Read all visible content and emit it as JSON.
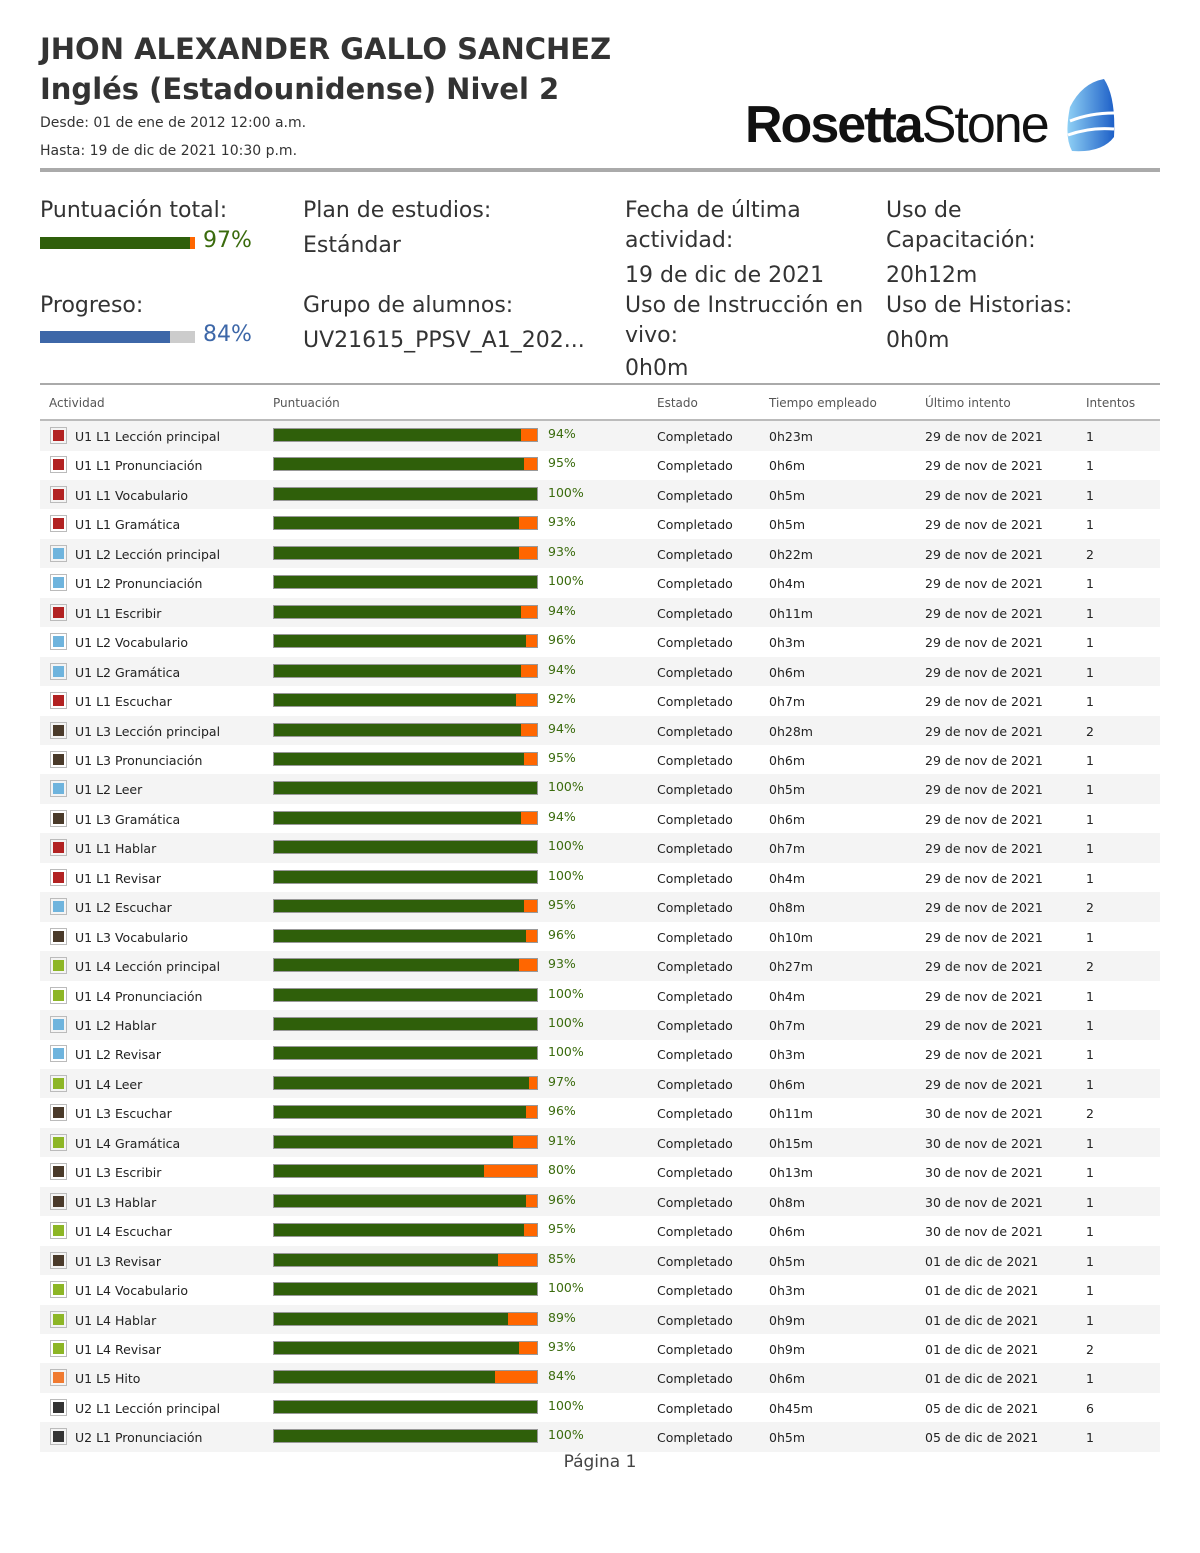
{
  "header": {
    "student_name": "JHON ALEXANDER GALLO SANCHEZ",
    "course": "Inglés (Estadounidense) Nivel 2",
    "from": "Desde: 01 de ene de 2012 12:00 a.m.",
    "to": "Hasta: 19 de dic de 2021 10:30 p.m.",
    "logo": "Rosetta Stone"
  },
  "summary": {
    "total_score_label": "Puntuación total:",
    "total_score": 97,
    "total_score_text": "97%",
    "progress_label": "Progreso:",
    "progress": 84,
    "progress_text": "84%",
    "plan_label": "Plan de estudios:",
    "plan_value": "Estándar",
    "group_label": "Grupo de alumnos:",
    "group_value": "UV21615_PPSV_A1_202...",
    "last_activity_label": "Fecha de última actividad:",
    "last_activity_value": "19 de dic de 2021",
    "live_label": "Uso de Instrucción en vivo:",
    "live_value": "0h0m",
    "training_label": "Uso de Capacitación:",
    "training_value": "20h12m",
    "stories_label": "Uso de Historias:",
    "stories_value": "0h0m"
  },
  "colors": {
    "score_fill": "#2f5f0a",
    "score_missing": "#ff6600",
    "progress_fill": "#3d67a8",
    "pct_green": "#3a6b0d",
    "pct_blue": "#3d67a8"
  },
  "table": {
    "columns": [
      "Actividad",
      "Puntuación",
      "Estado",
      "Tiempo empleado",
      "Último intento",
      "Intentos"
    ],
    "rows": [
      [
        "U1 L1 Lección principal",
        94,
        "Completado",
        "0h23m",
        "29 de nov de 2021",
        "1",
        "#b22222"
      ],
      [
        "U1 L1 Pronunciación",
        95,
        "Completado",
        "0h6m",
        "29 de nov de 2021",
        "1",
        "#b22222"
      ],
      [
        "U1 L1 Vocabulario",
        100,
        "Completado",
        "0h5m",
        "29 de nov de 2021",
        "1",
        "#b22222"
      ],
      [
        "U1 L1 Gramática",
        93,
        "Completado",
        "0h5m",
        "29 de nov de 2021",
        "1",
        "#b22222"
      ],
      [
        "U1 L2 Lección principal",
        93,
        "Completado",
        "0h22m",
        "29 de nov de 2021",
        "2",
        "#6fb4dd"
      ],
      [
        "U1 L2 Pronunciación",
        100,
        "Completado",
        "0h4m",
        "29 de nov de 2021",
        "1",
        "#6fb4dd"
      ],
      [
        "U1 L1 Escribir",
        94,
        "Completado",
        "0h11m",
        "29 de nov de 2021",
        "1",
        "#b22222"
      ],
      [
        "U1 L2 Vocabulario",
        96,
        "Completado",
        "0h3m",
        "29 de nov de 2021",
        "1",
        "#6fb4dd"
      ],
      [
        "U1 L2 Gramática",
        94,
        "Completado",
        "0h6m",
        "29 de nov de 2021",
        "1",
        "#6fb4dd"
      ],
      [
        "U1 L1 Escuchar",
        92,
        "Completado",
        "0h7m",
        "29 de nov de 2021",
        "1",
        "#b22222"
      ],
      [
        "U1 L3 Lección principal",
        94,
        "Completado",
        "0h28m",
        "29 de nov de 2021",
        "2",
        "#4a3a2a"
      ],
      [
        "U1 L3 Pronunciación",
        95,
        "Completado",
        "0h6m",
        "29 de nov de 2021",
        "1",
        "#4a3a2a"
      ],
      [
        "U1 L2 Leer",
        100,
        "Completado",
        "0h5m",
        "29 de nov de 2021",
        "1",
        "#6fb4dd"
      ],
      [
        "U1 L3 Gramática",
        94,
        "Completado",
        "0h6m",
        "29 de nov de 2021",
        "1",
        "#4a3a2a"
      ],
      [
        "U1 L1 Hablar",
        100,
        "Completado",
        "0h7m",
        "29 de nov de 2021",
        "1",
        "#b22222"
      ],
      [
        "U1 L1 Revisar",
        100,
        "Completado",
        "0h4m",
        "29 de nov de 2021",
        "1",
        "#b22222"
      ],
      [
        "U1 L2 Escuchar",
        95,
        "Completado",
        "0h8m",
        "29 de nov de 2021",
        "2",
        "#6fb4dd"
      ],
      [
        "U1 L3 Vocabulario",
        96,
        "Completado",
        "0h10m",
        "29 de nov de 2021",
        "1",
        "#4a3a2a"
      ],
      [
        "U1 L4 Lección principal",
        93,
        "Completado",
        "0h27m",
        "29 de nov de 2021",
        "2",
        "#8db626"
      ],
      [
        "U1 L4 Pronunciación",
        100,
        "Completado",
        "0h4m",
        "29 de nov de 2021",
        "1",
        "#8db626"
      ],
      [
        "U1 L2 Hablar",
        100,
        "Completado",
        "0h7m",
        "29 de nov de 2021",
        "1",
        "#6fb4dd"
      ],
      [
        "U1 L2 Revisar",
        100,
        "Completado",
        "0h3m",
        "29 de nov de 2021",
        "1",
        "#6fb4dd"
      ],
      [
        "U1 L4 Leer",
        97,
        "Completado",
        "0h6m",
        "29 de nov de 2021",
        "1",
        "#8db626"
      ],
      [
        "U1 L3 Escuchar",
        96,
        "Completado",
        "0h11m",
        "30 de nov de 2021",
        "2",
        "#4a3a2a"
      ],
      [
        "U1 L4 Gramática",
        91,
        "Completado",
        "0h15m",
        "30 de nov de 2021",
        "1",
        "#8db626"
      ],
      [
        "U1 L3 Escribir",
        80,
        "Completado",
        "0h13m",
        "30 de nov de 2021",
        "1",
        "#4a3a2a"
      ],
      [
        "U1 L3 Hablar",
        96,
        "Completado",
        "0h8m",
        "30 de nov de 2021",
        "1",
        "#4a3a2a"
      ],
      [
        "U1 L4 Escuchar",
        95,
        "Completado",
        "0h6m",
        "30 de nov de 2021",
        "1",
        "#8db626"
      ],
      [
        "U1 L3 Revisar",
        85,
        "Completado",
        "0h5m",
        "01 de dic de 2021",
        "1",
        "#4a3a2a"
      ],
      [
        "U1 L4 Vocabulario",
        100,
        "Completado",
        "0h3m",
        "01 de dic de 2021",
        "1",
        "#8db626"
      ],
      [
        "U1 L4 Hablar",
        89,
        "Completado",
        "0h9m",
        "01 de dic de 2021",
        "1",
        "#8db626"
      ],
      [
        "U1 L4 Revisar",
        93,
        "Completado",
        "0h9m",
        "01 de dic de 2021",
        "2",
        "#8db626"
      ],
      [
        "U1 L5 Hito",
        84,
        "Completado",
        "0h6m",
        "01 de dic de 2021",
        "1",
        "#f07a30"
      ],
      [
        "U2 L1 Lección principal",
        100,
        "Completado",
        "0h45m",
        "05 de dic de 2021",
        "6",
        "#333333"
      ],
      [
        "U2 L1 Pronunciación",
        100,
        "Completado",
        "0h5m",
        "05 de dic de 2021",
        "1",
        "#333333"
      ]
    ]
  },
  "footer": {
    "page": "Página 1"
  }
}
